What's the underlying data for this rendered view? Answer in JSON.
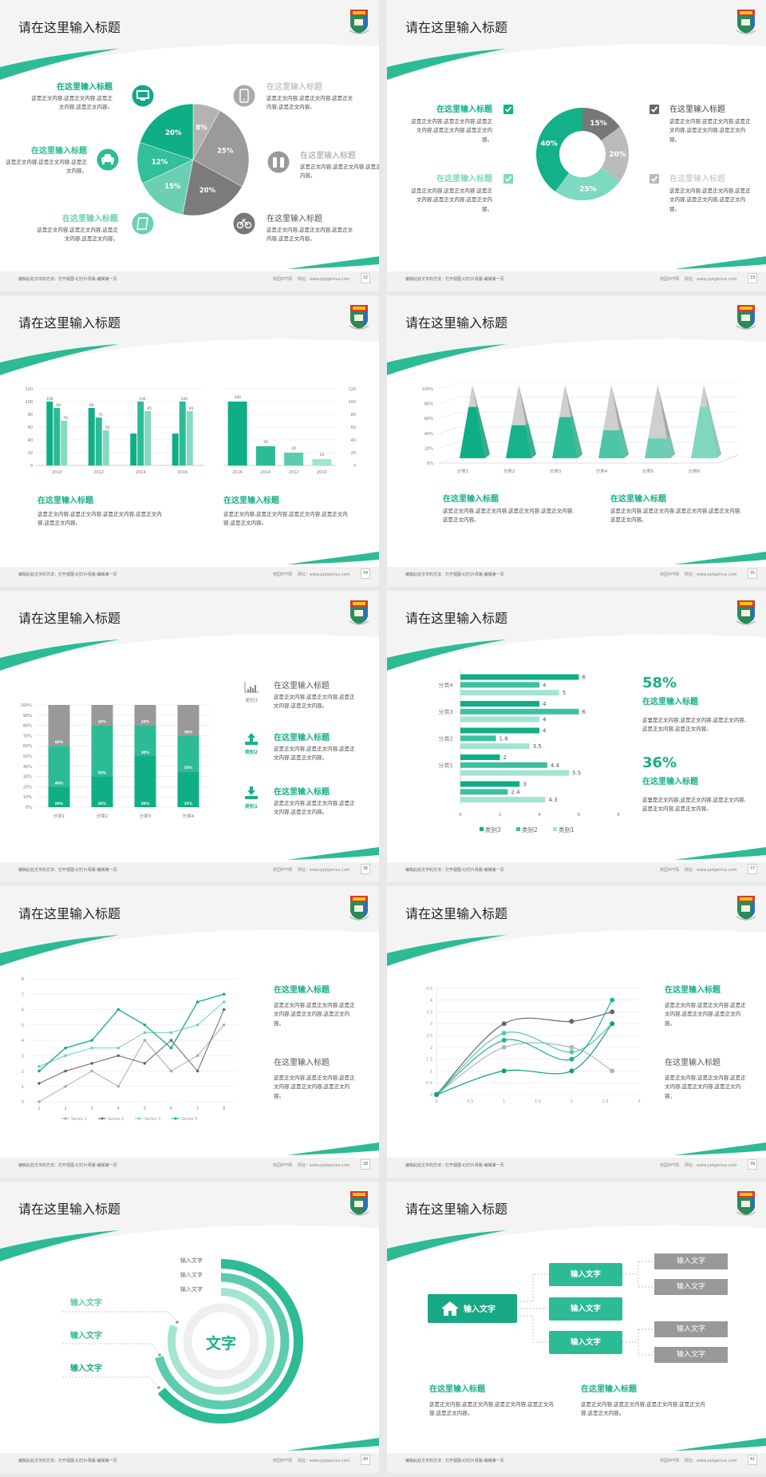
{
  "footer": {
    "edit_hint": "编辑此处文字的方法：打开视图-幻灯片母版-编辑第一页",
    "brand": "校园PPT网",
    "url": "网址：www.pptgenius.com"
  },
  "colors": {
    "accent": "#2dbb96",
    "accent_dark": "#0fae87",
    "accent_light": "#a3e4d2",
    "gray": "#999999",
    "dark_gray": "#666666"
  },
  "slides": [
    {
      "title": "请在这里输入标题",
      "page": "32",
      "items": [
        {
          "heading": "在这里输入标题",
          "body": "这是正文内容,这是正文内容,这是正文内容,这是正文内容。",
          "icon": "monitor-icon",
          "color": "#13a986"
        },
        {
          "heading": "在这里输入标题",
          "body": "这是正文内容,这是正文内容,这是正文内容。",
          "icon": "car-icon",
          "color": "#2dbb96"
        },
        {
          "heading": "在这里输入标题",
          "body": "这是正文内容,这是正文内容,这是正文内容,这是正文内容。",
          "icon": "book-icon",
          "color": "#6dcfb5"
        },
        {
          "heading": "在这里输入标题",
          "body": "这是正文内容,这是正文内容,这是正文内容,这是正文内容。",
          "icon": "phone-icon",
          "color": "#aaaaaa"
        },
        {
          "heading": "在这里输入标题",
          "body": "这是正文内容,这是正文内容,这是正文内容。",
          "icon": "binoculars-icon",
          "color": "#999999"
        },
        {
          "heading": "在这里输入标题",
          "body": "这是正文内容,这是正文内容,这是正文内容,这是正文内容。",
          "icon": "bicycle-icon",
          "color": "#777777"
        }
      ]
    },
    {
      "title": "请在这里输入标题",
      "page": "33",
      "items": [
        {
          "heading": "在这里输入标题",
          "body": "这是正文内容,这是正文内容,这是正文内容,这是正文内容,这是正文内容。",
          "icon": "checkbox-checked-icon",
          "color": "#13b08a"
        },
        {
          "heading": "在这里输入标题",
          "body": "这是正文内容,这是正文内容,这是正文内容,这是正文内容,这是正文内容。",
          "icon": "checkbox-checked-icon",
          "color": "#7dd9c0"
        },
        {
          "heading": "在这里输入标题",
          "body": "这是正文内容,这是正文内容,这是正文内容,这是正文内容,这是正文内容。",
          "icon": "checkbox-checked-icon",
          "color": "#666666"
        },
        {
          "heading": "在这里输入标题",
          "body": "这是正文内容,这是正文内容,这是正文内容,这是正文内容,这是正文内容。",
          "icon": "checkbox-checked-icon",
          "color": "#bbbbbb"
        }
      ]
    },
    {
      "title": "请在这里输入标题",
      "page": "34",
      "blocks": [
        {
          "heading": "在这里输入标题",
          "body": "这是正文内容,这是正文内容,这是正文内容,这是正文内容,这是正文内容。"
        },
        {
          "heading": "在这里输入标题",
          "body": "这是正文内容,这是正文内容,这是正文内容,这是正文内容,这是正文内容。"
        }
      ]
    },
    {
      "title": "请在这里输入标题",
      "page": "35",
      "blocks": [
        {
          "heading": "在这里输入标题",
          "body": "这是正文内容,这是正文内容,这是正文内容,这是正文内容,这是正文内容。"
        },
        {
          "heading": "在这里输入标题",
          "body": "这是正文内容,这是正文内容,这是正文内容,这是正文内容,这是正文内容。"
        }
      ]
    },
    {
      "title": "请在这里输入标题",
      "page": "36",
      "items": [
        {
          "label": "类别3",
          "heading": "在这里输入标题",
          "body": "这是正文内容,这是正文内容,这是正文内容,这是正文内容。",
          "icon": "bar-chart-icon",
          "color": "#888888"
        },
        {
          "label": "类别2",
          "heading": "在这里输入标题",
          "body": "这是正文内容,这是正文内容,这是正文内容,这是正文内容。",
          "icon": "upload-icon",
          "color": "#1aaf88"
        },
        {
          "label": "类别1",
          "heading": "在这里输入标题",
          "body": "这是正文内容,这是正文内容,这是正文内容,这是正文内容。",
          "icon": "download-icon",
          "color": "#1aaf88"
        }
      ]
    },
    {
      "title": "请在这里输入标题",
      "page": "37",
      "stats": [
        {
          "value": "58%",
          "heading": "在这里输入标题",
          "body": "这里是正文内容,这是正文内容,这是正文内容,这是正文内容,这是正文内容。"
        },
        {
          "value": "36%",
          "heading": "在这里输入标题",
          "body": "这里是正文内容,这是正文内容,这是正文内容,这是正文内容,这是正文内容。"
        }
      ]
    },
    {
      "title": "请在这里输入标题",
      "page": "38",
      "blocks": [
        {
          "heading": "在这里输入标题",
          "body": "这是正文内容,这是正文内容,这是正文内容,这是正文内容,这是正文内容。"
        },
        {
          "heading": "在这里输入标题",
          "body": "这是正文内容,这是正文内容,这是正文内容,这是正文内容,这是正文内容。"
        }
      ]
    },
    {
      "title": "请在这里输入标题",
      "page": "39",
      "blocks": [
        {
          "heading": "在这里输入标题",
          "body": "这是正文内容,这是正文内容,这是正文内容,这是正文内容,这是正文内容。"
        },
        {
          "heading": "在这里输入标题",
          "body": "这是正文内容,这是正文内容,这是正文内容,这是正文内容,这是正文内容。"
        }
      ]
    },
    {
      "title": "请在这里输入标题",
      "page": "40",
      "center_label": "文字",
      "ring_labels": [
        "输入文字",
        "输入文字",
        "输入文字"
      ],
      "side_labels": [
        "输入文字",
        "输入文字",
        "输入文字"
      ],
      "ring_levels": [
        0.64,
        0.71,
        0.8
      ]
    },
    {
      "title": "请在这里输入标题",
      "page": "41",
      "root": "输入文字",
      "level1": [
        "输入文字",
        "输入文字",
        "输入文字"
      ],
      "level2": [
        "输入文字",
        "输入文字",
        "输入文字",
        "输入文字"
      ],
      "blocks": [
        {
          "heading": "在这里输入标题",
          "body": "这是正文内容,这是正文内容,这是正文内容,这是正文内容,这是正文内容。"
        },
        {
          "heading": "在这里输入标题",
          "body": "这是正文内容,这是正文内容,这是正文内容,这是正文内容,这是正文内容。"
        }
      ]
    }
  ],
  "chart_data": [
    {
      "type": "pie",
      "values": [
        8,
        25,
        20,
        15,
        12,
        20
      ],
      "labels": [
        "8%",
        "25%",
        "20%",
        "15%",
        "12%",
        "20%"
      ],
      "colors": [
        "#b3b3b3",
        "#9a9a9a",
        "#7b7b7b",
        "#6ccfb4",
        "#33bf9a",
        "#0fae87"
      ]
    },
    {
      "type": "pie",
      "subtype": "donut",
      "values": [
        15,
        20,
        25,
        40
      ],
      "labels": [
        "15%",
        "20%",
        "25%",
        "40%"
      ],
      "colors": [
        "#777777",
        "#bbbbbb",
        "#7dd9c0",
        "#13b08a"
      ]
    },
    {
      "type": "bar",
      "categories": [
        "2010",
        "2012",
        "2014",
        "2016"
      ],
      "ylim": [
        0,
        120
      ],
      "yticks": [
        0,
        20,
        40,
        60,
        80,
        100,
        120
      ],
      "grid": true,
      "series": [
        {
          "values": [
            100,
            90,
            50,
            50
          ],
          "data_labels": [
            "100",
            "90",
            null,
            null
          ],
          "color": "#0fae87"
        },
        {
          "values": [
            90,
            75,
            100,
            100
          ],
          "data_labels": [
            "90",
            "75",
            "100",
            "100"
          ],
          "color": "#2dbb96"
        },
        {
          "values": [
            70,
            55,
            85,
            85
          ],
          "data_labels": [
            "70",
            "55",
            "85",
            "85"
          ],
          "color": "#86d9c3"
        }
      ]
    },
    {
      "type": "bar",
      "categories": [
        "2016",
        "2014",
        "2012",
        "2010"
      ],
      "values": [
        100,
        30,
        20,
        10
      ],
      "data_labels": [
        "100",
        "30",
        "20",
        "10"
      ],
      "ylim": [
        0,
        120
      ],
      "yticks": [
        0,
        20,
        40,
        60,
        80,
        100,
        120
      ],
      "y_axis_side": "right",
      "grid": true,
      "colors": [
        "#0fae87",
        "#2dbb96",
        "#5ccbb0",
        "#a3e4d2"
      ]
    },
    {
      "type": "bar",
      "subtype": "3d-pyramid",
      "categories": [
        "分类1",
        "分类2",
        "分类3",
        "分类4",
        "分类5",
        "分类6"
      ],
      "values": [
        70,
        45,
        56,
        38,
        27,
        70
      ],
      "ylim": [
        0,
        100
      ],
      "yticks": [
        "0%",
        "20%",
        "40%",
        "60%",
        "80%",
        "100%"
      ],
      "grid": true,
      "colors": [
        "#0fae87",
        "#16b28b",
        "#2dbb96",
        "#4cc6a6",
        "#6ccfb5",
        "#80d8c1"
      ]
    },
    {
      "type": "bar",
      "subtype": "stacked-100",
      "categories": [
        "分类1",
        "分类2",
        "分类3",
        "分类4"
      ],
      "yticks": [
        "0%",
        "10%",
        "20%",
        "30%",
        "40%",
        "50%",
        "60%",
        "70%",
        "80%",
        "90%",
        "100%"
      ],
      "grid": true,
      "series": [
        {
          "values": [
            20,
            30,
            50,
            35
          ],
          "labels": [
            "20%",
            "30%",
            "50%",
            "35%"
          ],
          "color": "#0fae87"
        },
        {
          "values": [
            40,
            50,
            30,
            35
          ],
          "labels": [
            "40%",
            "50%",
            "30%",
            "35%"
          ],
          "color": "#2dbb96"
        },
        {
          "values": [
            40,
            20,
            20,
            30
          ],
          "labels": [
            "40%",
            "20%",
            "20%",
            "30%"
          ],
          "color": "#999999"
        }
      ]
    },
    {
      "type": "bar",
      "subtype": "horizontal",
      "categories": [
        "分类4",
        "分类3",
        "分类2",
        "分类1",
        ""
      ],
      "xlim": [
        0,
        8
      ],
      "xticks": [
        0,
        2,
        4,
        6,
        8
      ],
      "legend": "bottom",
      "series": [
        {
          "name": "类别3",
          "values": [
            6,
            4,
            4,
            2,
            3
          ],
          "color": "#0fae87"
        },
        {
          "name": "类别2",
          "values": [
            4,
            6,
            1.8,
            4.4,
            2.4
          ],
          "color": "#3cc19e"
        },
        {
          "name": "类别1",
          "values": [
            5,
            4,
            3.5,
            5.5,
            4.3
          ],
          "color": "#a3e4d2"
        }
      ]
    },
    {
      "type": "line",
      "x": [
        1,
        2,
        3,
        4,
        5,
        6,
        7,
        8
      ],
      "ylim": [
        0,
        8
      ],
      "yticks": [
        0,
        1,
        2,
        3,
        4,
        5,
        6,
        7,
        8
      ],
      "grid": true,
      "legend": "bottom",
      "series": [
        {
          "name": "Series 1",
          "values": [
            0,
            1,
            2,
            1,
            4,
            2,
            3,
            5
          ],
          "color": "#aaaaaa"
        },
        {
          "name": "Series 2",
          "values": [
            1.2,
            2,
            2.5,
            3,
            2.5,
            4,
            2,
            6
          ],
          "color": "#666666"
        },
        {
          "name": "Series 3",
          "values": [
            2.3,
            3,
            3.5,
            3.5,
            4.5,
            4.5,
            5,
            6.5
          ],
          "color": "#6ed3b8"
        },
        {
          "name": "Series 4",
          "values": [
            2,
            3.5,
            4,
            6,
            5,
            3.5,
            6.5,
            7
          ],
          "color": "#11ad86"
        }
      ]
    },
    {
      "type": "scatter",
      "subtype": "smooth-lines",
      "xlim": [
        0,
        3
      ],
      "ylim": [
        0,
        4.5
      ],
      "xticks": [
        0,
        0.5,
        1,
        1.5,
        2,
        2.5,
        3
      ],
      "yticks": [
        0,
        0.5,
        1,
        1.5,
        2,
        2.5,
        3,
        3.5,
        4,
        4.5
      ],
      "grid": true,
      "x": [
        0,
        1,
        2,
        2.6
      ],
      "series": [
        {
          "values": [
            0,
            2,
            2,
            1
          ],
          "color": "#b5b5b5"
        },
        {
          "values": [
            0,
            3,
            3.1,
            3.5
          ],
          "color": "#666666"
        },
        {
          "values": [
            0,
            2.6,
            1.8,
            3
          ],
          "color": "#55c9aa"
        },
        {
          "values": [
            0,
            2.3,
            1.5,
            4
          ],
          "color": "#1db690"
        },
        {
          "values": [
            0,
            1,
            1,
            3
          ],
          "color": "#0e9f7c"
        }
      ]
    }
  ]
}
